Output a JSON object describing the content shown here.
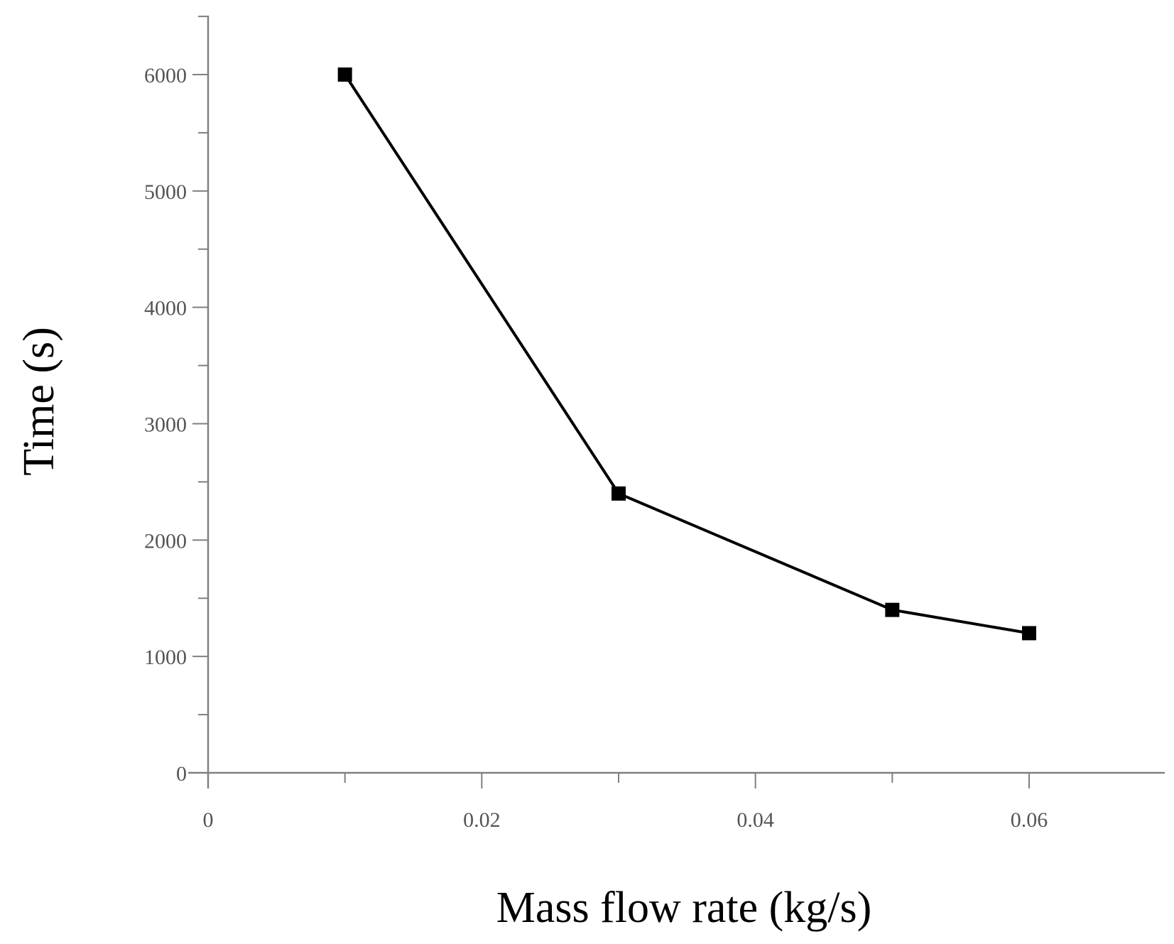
{
  "chart_data": {
    "type": "line",
    "title": "",
    "xlabel": "Mass flow rate (kg/s)",
    "ylabel": "Time (s)",
    "xlim": [
      0,
      0.07
    ],
    "ylim": [
      0,
      6500
    ],
    "x_ticks": [
      0,
      0.02,
      0.04,
      0.06
    ],
    "x_tick_labels": [
      "0",
      "0.02",
      "0.04",
      "0.06"
    ],
    "x_minor_ticks": [
      0.01,
      0.03,
      0.05
    ],
    "y_ticks": [
      0,
      1000,
      2000,
      3000,
      4000,
      5000,
      6000
    ],
    "y_tick_labels": [
      "0",
      "1000",
      "2000",
      "3000",
      "4000",
      "5000",
      "6000"
    ],
    "y_minor_ticks": [
      500,
      1500,
      2500,
      3500,
      4500,
      5500,
      6500
    ],
    "grid": false,
    "legend": "none",
    "series": [
      {
        "marker": "square",
        "color": "#000000",
        "x": [
          0.01,
          0.03,
          0.05,
          0.06
        ],
        "y": [
          6000,
          2400,
          1400,
          1200
        ]
      }
    ]
  }
}
